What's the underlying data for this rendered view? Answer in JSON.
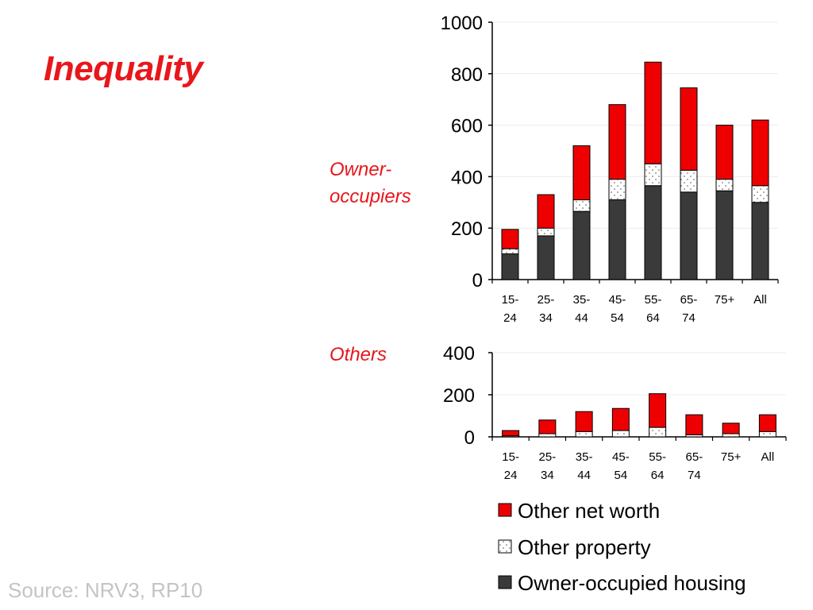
{
  "title": "Inequality",
  "source": "Source: NRV3, RP10",
  "colors": {
    "other_net_worth": "#ee0000",
    "other_property": "#ffffff",
    "owner_occupied_housing": "#3a3a3a",
    "title": "#e8171b",
    "source": "#c4c4c4"
  },
  "legend": [
    {
      "label": "Other net worth",
      "color": "#ee0000",
      "pattern": "solid"
    },
    {
      "label": "Other property",
      "color": "#ffffff",
      "pattern": "dots"
    },
    {
      "label": "Owner-occupied housing",
      "color": "#3a3a3a",
      "pattern": "solid"
    }
  ],
  "chart_data": [
    {
      "type": "bar",
      "stacked": true,
      "panel_label": "Owner-\noccupiers",
      "categories": [
        [
          "15-",
          "24"
        ],
        [
          "25-",
          "34"
        ],
        [
          "35-",
          "44"
        ],
        [
          "45-",
          "54"
        ],
        [
          "55-",
          "64"
        ],
        [
          "65-",
          "74"
        ],
        [
          "75+",
          ""
        ],
        [
          "All",
          ""
        ]
      ],
      "ylim": [
        0,
        1000
      ],
      "yticks": [
        0,
        200,
        400,
        600,
        800,
        1000
      ],
      "series": [
        {
          "name": "Owner-occupied housing",
          "values": [
            100,
            170,
            265,
            310,
            365,
            340,
            345,
            300
          ]
        },
        {
          "name": "Other property",
          "values": [
            20,
            30,
            45,
            80,
            85,
            85,
            45,
            65
          ]
        },
        {
          "name": "Other net worth",
          "values": [
            75,
            130,
            210,
            290,
            395,
            320,
            210,
            255
          ]
        }
      ]
    },
    {
      "type": "bar",
      "stacked": true,
      "panel_label": "Others",
      "categories": [
        [
          "15-",
          "24"
        ],
        [
          "25-",
          "34"
        ],
        [
          "35-",
          "44"
        ],
        [
          "45-",
          "54"
        ],
        [
          "55-",
          "64"
        ],
        [
          "65-",
          "74"
        ],
        [
          "75+",
          ""
        ],
        [
          "All",
          ""
        ]
      ],
      "ylim": [
        0,
        400
      ],
      "yticks": [
        0,
        200,
        400
      ],
      "series": [
        {
          "name": "Owner-occupied housing",
          "values": [
            0,
            0,
            0,
            0,
            0,
            0,
            0,
            0
          ]
        },
        {
          "name": "Other property",
          "values": [
            5,
            15,
            25,
            30,
            45,
            10,
            15,
            25
          ]
        },
        {
          "name": "Other net worth",
          "values": [
            25,
            65,
            95,
            105,
            160,
            95,
            50,
            80
          ]
        }
      ]
    }
  ]
}
